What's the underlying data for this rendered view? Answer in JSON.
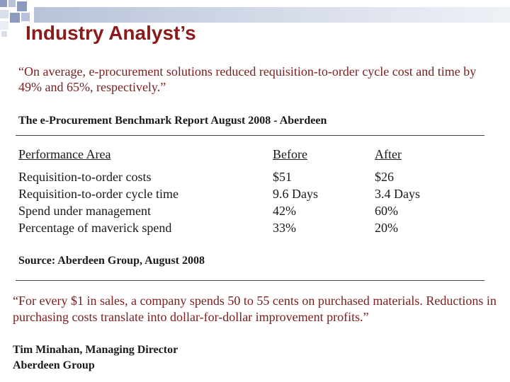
{
  "slide": {
    "title": "Industry Analyst’s",
    "quote_primary": "“On average, e-procurement solutions reduced requisition-to-order cycle cost and time by 49% and 65%, respectively.”",
    "report_reference": "The e-Procurement Benchmark Report August 2008 - Aberdeen",
    "table": {
      "headers": [
        "Performance Area",
        "Before",
        "After"
      ],
      "rows": [
        [
          "Requisition-to-order costs",
          "$51",
          "$26"
        ],
        [
          "Requisition-to-order cycle time",
          "9.6 Days",
          "3.4 Days"
        ],
        [
          "Spend under management",
          "42%",
          "60%"
        ],
        [
          "Percentage of maverick spend",
          "33%",
          "20%"
        ]
      ]
    },
    "source": "Source: Aberdeen Group, August 2008",
    "quote_secondary": "“For every $1 in sales, a company spends 50 to 55 cents on purchased materials. Reductions in purchasing costs translate into dollar-for-dollar improvement profits.”",
    "attribution": {
      "name_line": "Tim Minahan, Managing Director",
      "org_line": "Aberdeen Group"
    }
  }
}
